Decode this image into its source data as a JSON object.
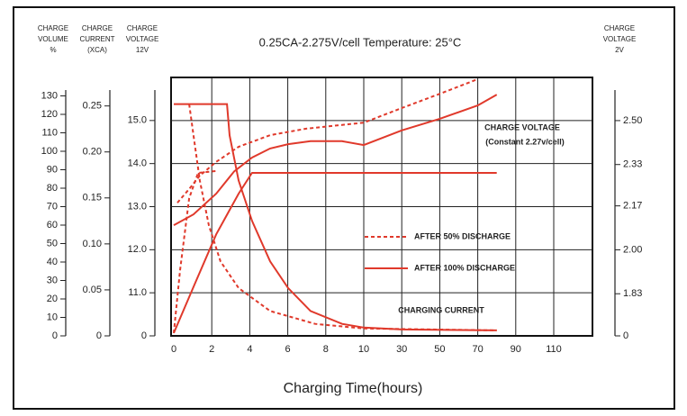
{
  "chart_data": {
    "type": "line",
    "title": "0.25CA-2.275V/cell   Temperature: 25°C",
    "x_label": "Charging Time(hours)",
    "xlim": [
      0,
      130
    ],
    "xticks": [
      0,
      2,
      4,
      6,
      8,
      10,
      30,
      50,
      70,
      90,
      110
    ],
    "grid": true,
    "color": "#e0392b",
    "axes": [
      {
        "id": "volume",
        "header_lines": [
          "CHARGE",
          "VOLUME",
          "%"
        ],
        "ylim": [
          0,
          140
        ],
        "yticks": [
          0,
          10,
          20,
          30,
          40,
          50,
          60,
          70,
          80,
          90,
          100,
          110,
          120,
          130
        ]
      },
      {
        "id": "current",
        "header_lines": [
          "CHARGE",
          "CURRENT",
          "(XCA)"
        ],
        "ylim": [
          0,
          0.281
        ],
        "yticks": [
          0,
          0.05,
          {
            "value": 0.1,
            "label": "0.10"
          },
          0.15,
          {
            "value": 0.2,
            "label": "0.20"
          },
          0.25
        ]
      },
      {
        "id": "voltage",
        "header_lines": [
          "CHARGE",
          "VOLTAGE",
          "12V"
        ],
        "ylim": [
          10,
          16
        ],
        "axis_break": true,
        "yticks": [
          0,
          {
            "value": 11,
            "label": "11.0"
          },
          {
            "value": 12,
            "label": "12.0"
          },
          {
            "value": 13,
            "label": "13.0"
          },
          {
            "value": 14,
            "label": "14.0"
          },
          {
            "value": 15,
            "label": "15.0"
          }
        ]
      },
      {
        "id": "voltage2",
        "header_lines": [
          "CHARGE",
          "VOLTAGE",
          "2V"
        ],
        "ylim": [
          1.667,
          2.667
        ],
        "axis_break": true,
        "yticks": [
          0,
          1.83,
          {
            "value": 2,
            "label": "2.00"
          },
          2.17,
          2.33,
          {
            "value": 2.5,
            "label": "2.50"
          }
        ]
      }
    ],
    "legend": [
      {
        "name": "AFTER 50% DISCHARGE",
        "style": "dashed"
      },
      {
        "name": "AFTER 100% DISCHARGE",
        "style": "solid"
      }
    ],
    "annotations": [
      "CHARGE VOLTAGE",
      "(Constant 2.27v/cell)",
      "CHARGING CURRENT"
    ],
    "series": [
      {
        "axis": "voltage",
        "style": "solid",
        "x": [
          0,
          1.04,
          2.23,
          3.18,
          4.12,
          5.07,
          6.02,
          7.2,
          8.86,
          10,
          30,
          50,
          70,
          80
        ],
        "values": [
          12.57,
          12.82,
          13.3,
          13.82,
          14.14,
          14.35,
          14.45,
          14.52,
          14.52,
          14.43,
          14.77,
          15.04,
          15.35,
          15.6
        ]
      },
      {
        "axis": "voltage",
        "style": "dashed",
        "x": [
          0.19,
          0.81,
          1.37,
          2.23,
          3.41,
          5.07,
          6.97,
          10,
          30,
          50,
          70
        ],
        "values": [
          13.09,
          13.41,
          13.72,
          14.04,
          14.39,
          14.66,
          14.81,
          14.95,
          15.29,
          15.62,
          15.96
        ]
      },
      {
        "axis": "current",
        "style": "solid",
        "x": [
          0,
          2.8,
          2.94,
          3.41,
          4.12,
          5.07,
          6.02,
          7.2,
          8.86,
          10,
          30,
          80
        ],
        "values": [
          0.252,
          0.252,
          0.218,
          0.169,
          0.125,
          0.081,
          0.052,
          0.027,
          0.013,
          0.009,
          0.007,
          0.006
        ]
      },
      {
        "axis": "current",
        "style": "dashed",
        "x": [
          0.81,
          1.04,
          1.37,
          1.85,
          2.46,
          3.41,
          5.07,
          7.44,
          10,
          80
        ],
        "values": [
          0.252,
          0.218,
          0.169,
          0.12,
          0.081,
          0.052,
          0.027,
          0.013,
          0.008,
          0.006
        ]
      },
      {
        "axis": "volume",
        "style": "solid",
        "x": [
          0,
          1.1,
          2.23,
          3.41,
          4.12,
          80
        ],
        "values": [
          1.5,
          28,
          55,
          77,
          88.3,
          88.3
        ]
      },
      {
        "axis": "volume",
        "style": "dashed",
        "x": [
          0,
          0.33,
          0.81,
          1.28,
          2.23
        ],
        "values": [
          1.5,
          35.6,
          74.6,
          88.3,
          89.3
        ]
      }
    ]
  }
}
